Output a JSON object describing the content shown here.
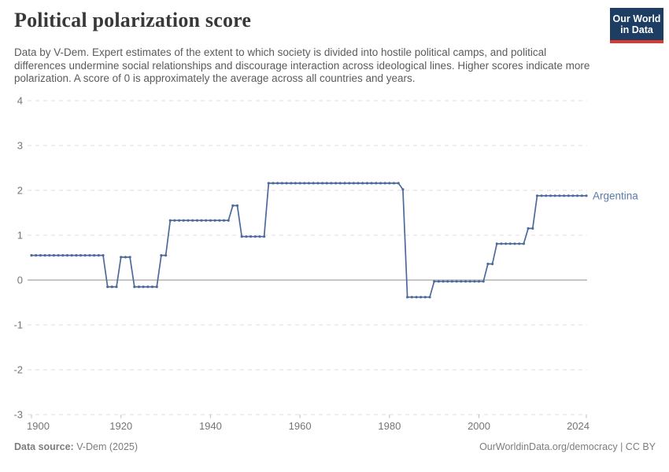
{
  "header": {
    "title": "Political polarization score",
    "subtitle": "Data by V-Dem. Expert estimates of the extent to which society is divided into hostile political camps, and political differences undermine social relationships and discourage interaction across ideological lines. Higher scores indicate more polarization. A score of 0 is approximately the average across all countries and years.",
    "logo_line1": "Our World",
    "logo_line2": "in Data"
  },
  "footer": {
    "source_label": "Data source:",
    "source_value": " V-Dem (2025)",
    "attribution": "OurWorldinData.org/democracy | CC BY"
  },
  "colors": {
    "series_line": "#4c6a9c",
    "series_label": "#5b79a8",
    "gridline": "#dedede",
    "zero_line": "#b3b3b3",
    "axis_text": "#757575",
    "logo_background": "#1d3d63",
    "logo_bar": "#dc3a2f",
    "title_text": "#383838",
    "subtitle_text": "#5b5b5b"
  },
  "chart_data": {
    "type": "line",
    "title": "Political polarization score",
    "series_label": "Argentina",
    "xlabel": "",
    "ylabel": "",
    "xlim": [
      1900,
      2024
    ],
    "ylim": [
      -3,
      4
    ],
    "y_ticks": [
      4,
      3,
      2,
      1,
      0,
      -1,
      -2,
      -3
    ],
    "x_ticks": [
      1900,
      1920,
      1940,
      1960,
      1980,
      2000,
      2024
    ],
    "grid": "horizontal-dashed",
    "zero_line": true,
    "legend_position": "end-of-line-label",
    "line_color": "#4c6a9c",
    "x": [
      1900,
      1901,
      1902,
      1903,
      1904,
      1905,
      1906,
      1907,
      1908,
      1909,
      1910,
      1911,
      1912,
      1913,
      1914,
      1915,
      1916,
      1917,
      1918,
      1919,
      1920,
      1921,
      1922,
      1923,
      1924,
      1925,
      1926,
      1927,
      1928,
      1929,
      1930,
      1931,
      1932,
      1933,
      1934,
      1935,
      1936,
      1937,
      1938,
      1939,
      1940,
      1941,
      1942,
      1943,
      1944,
      1945,
      1946,
      1947,
      1948,
      1949,
      1950,
      1951,
      1952,
      1953,
      1954,
      1955,
      1956,
      1957,
      1958,
      1959,
      1960,
      1961,
      1962,
      1963,
      1964,
      1965,
      1966,
      1967,
      1968,
      1969,
      1970,
      1971,
      1972,
      1973,
      1974,
      1975,
      1976,
      1977,
      1978,
      1979,
      1980,
      1981,
      1982,
      1983,
      1984,
      1985,
      1986,
      1987,
      1988,
      1989,
      1990,
      1991,
      1992,
      1993,
      1994,
      1995,
      1996,
      1997,
      1998,
      1999,
      2000,
      2001,
      2002,
      2003,
      2004,
      2005,
      2006,
      2007,
      2008,
      2009,
      2010,
      2011,
      2012,
      2013,
      2014,
      2015,
      2016,
      2017,
      2018,
      2019,
      2020,
      2021,
      2022,
      2023,
      2024
    ],
    "values": [
      0.55,
      0.55,
      0.55,
      0.55,
      0.55,
      0.55,
      0.55,
      0.55,
      0.55,
      0.55,
      0.55,
      0.55,
      0.55,
      0.55,
      0.55,
      0.55,
      0.55,
      -0.15,
      -0.15,
      -0.15,
      0.51,
      0.51,
      0.51,
      -0.15,
      -0.15,
      -0.15,
      -0.15,
      -0.15,
      -0.15,
      0.55,
      0.55,
      1.33,
      1.33,
      1.33,
      1.33,
      1.33,
      1.33,
      1.33,
      1.33,
      1.33,
      1.33,
      1.33,
      1.33,
      1.33,
      1.33,
      1.66,
      1.66,
      0.97,
      0.97,
      0.97,
      0.97,
      0.97,
      0.97,
      2.16,
      2.16,
      2.16,
      2.16,
      2.16,
      2.16,
      2.16,
      2.16,
      2.16,
      2.16,
      2.16,
      2.16,
      2.16,
      2.16,
      2.16,
      2.16,
      2.16,
      2.16,
      2.16,
      2.16,
      2.16,
      2.16,
      2.16,
      2.16,
      2.16,
      2.16,
      2.16,
      2.16,
      2.16,
      2.16,
      2.02,
      -0.38,
      -0.38,
      -0.38,
      -0.38,
      -0.38,
      -0.38,
      -0.03,
      -0.03,
      -0.03,
      -0.03,
      -0.03,
      -0.03,
      -0.03,
      -0.03,
      -0.03,
      -0.03,
      -0.03,
      -0.03,
      0.36,
      0.36,
      0.81,
      0.81,
      0.81,
      0.81,
      0.81,
      0.81,
      0.81,
      1.15,
      1.15,
      1.88,
      1.88,
      1.88,
      1.88,
      1.88,
      1.88,
      1.88,
      1.88,
      1.88,
      1.88,
      1.88,
      1.88
    ]
  }
}
